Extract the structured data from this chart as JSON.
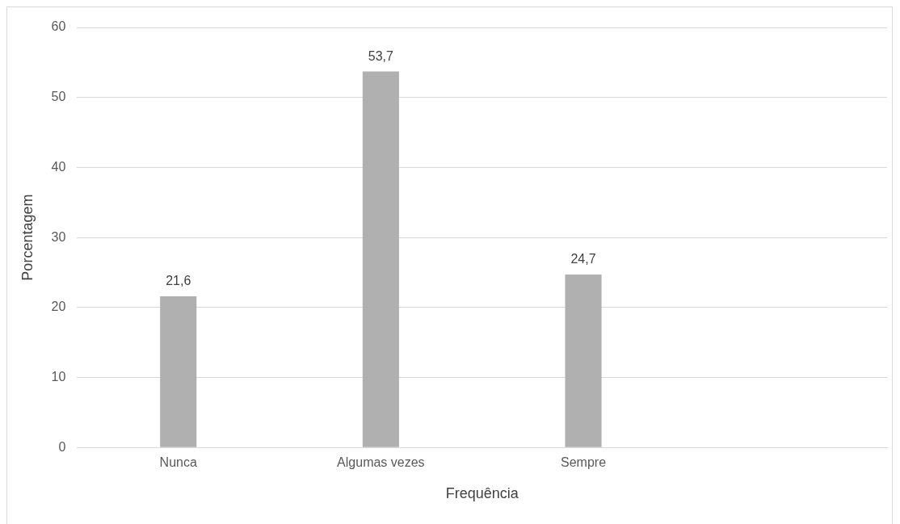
{
  "chart_data": {
    "type": "bar",
    "xlabel": "Frequência",
    "ylabel": "Porcentagem",
    "categories": [
      "Nunca",
      "Algumas vezes",
      "Sempre",
      null
    ],
    "values": [
      21.6,
      53.7,
      24.7,
      null
    ],
    "color": "#b0b0b0",
    "value_labels": [
      "21,6",
      "53,7",
      "24,7",
      null
    ],
    "ylim": [
      0,
      60
    ],
    "yticks": [
      0,
      10,
      20,
      30,
      40,
      50,
      60
    ],
    "grid": "y"
  }
}
